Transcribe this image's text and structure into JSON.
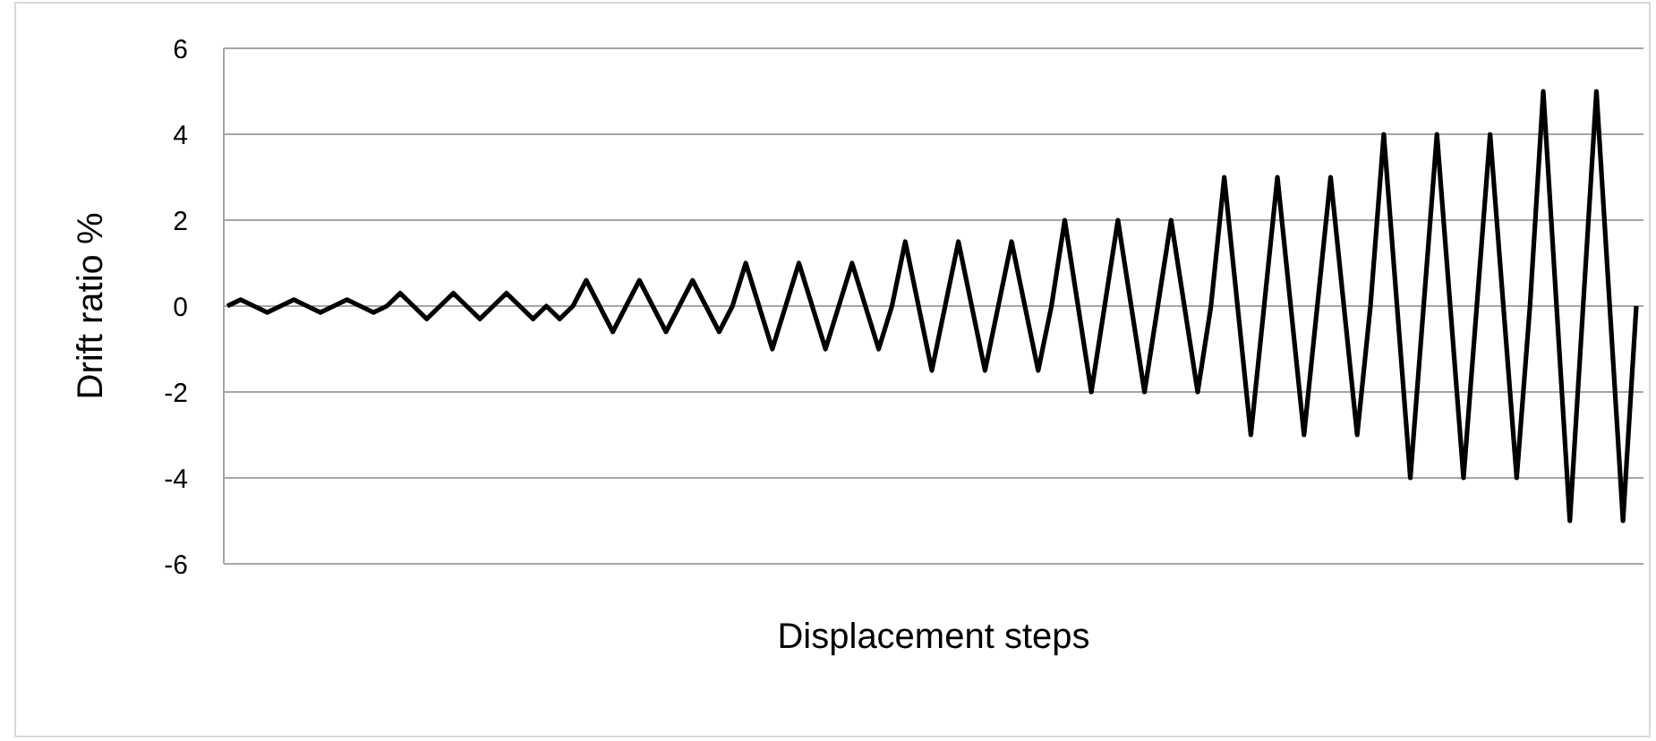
{
  "chart_data": {
    "type": "line",
    "xlabel": "Displacement steps",
    "ylabel": "Drift ratio %",
    "categories": [
      null,
      null,
      null,
      null,
      null,
      null,
      null,
      null,
      null,
      null,
      null,
      null,
      null,
      null,
      null,
      null,
      null,
      null,
      null,
      null,
      null,
      null,
      null,
      null,
      null,
      null,
      null,
      null,
      null,
      null,
      null,
      null,
      null,
      null,
      null,
      null,
      null,
      null,
      null,
      null,
      null,
      null,
      null,
      null,
      null,
      null,
      null,
      null,
      null,
      null,
      null,
      null,
      null,
      null,
      null,
      null,
      null,
      null,
      null,
      null,
      null,
      null,
      null,
      null,
      null,
      null,
      null,
      null,
      null,
      null,
      null,
      null,
      null,
      null,
      null,
      null,
      null,
      null,
      null,
      null,
      null,
      null,
      null,
      null,
      null,
      null,
      null,
      null,
      null,
      null,
      null,
      null,
      null,
      null,
      null,
      null,
      null,
      null,
      null,
      null,
      null,
      null,
      null,
      null,
      null,
      null,
      null
    ],
    "series": [
      {
        "color": "#000000",
        "values": [
          0,
          0.15,
          0,
          -0.15,
          0,
          0.15,
          0,
          -0.15,
          0,
          0.15,
          0,
          -0.15,
          0,
          0.3,
          0,
          -0.3,
          0,
          0.3,
          0,
          -0.3,
          0,
          0.3,
          0,
          -0.3,
          0,
          -0.3,
          0,
          0.6,
          0,
          -0.6,
          0,
          0.6,
          0,
          -0.6,
          0,
          0.6,
          0,
          -0.6,
          0,
          1,
          0,
          -1,
          0,
          1,
          0,
          -1,
          0,
          1,
          0,
          -1,
          0,
          1.5,
          0,
          -1.5,
          0,
          1.5,
          0,
          -1.5,
          0,
          1.5,
          0,
          -1.5,
          0,
          2,
          0,
          -2,
          0,
          2,
          0,
          -2,
          0,
          2,
          0,
          -2,
          0,
          3,
          0,
          -3,
          0,
          3,
          0,
          -3,
          0,
          3,
          0,
          -3,
          0,
          4,
          0,
          -4,
          0,
          4,
          0,
          -4,
          0,
          4,
          0,
          -4,
          0,
          5,
          0,
          -5,
          0,
          5,
          0,
          -5,
          0
        ]
      }
    ],
    "ylim": [
      -6,
      6
    ],
    "yticks": [
      -6,
      -4,
      -2,
      0,
      2,
      4,
      6
    ],
    "grid": "y",
    "marker": "none",
    "line_style": "solid"
  }
}
